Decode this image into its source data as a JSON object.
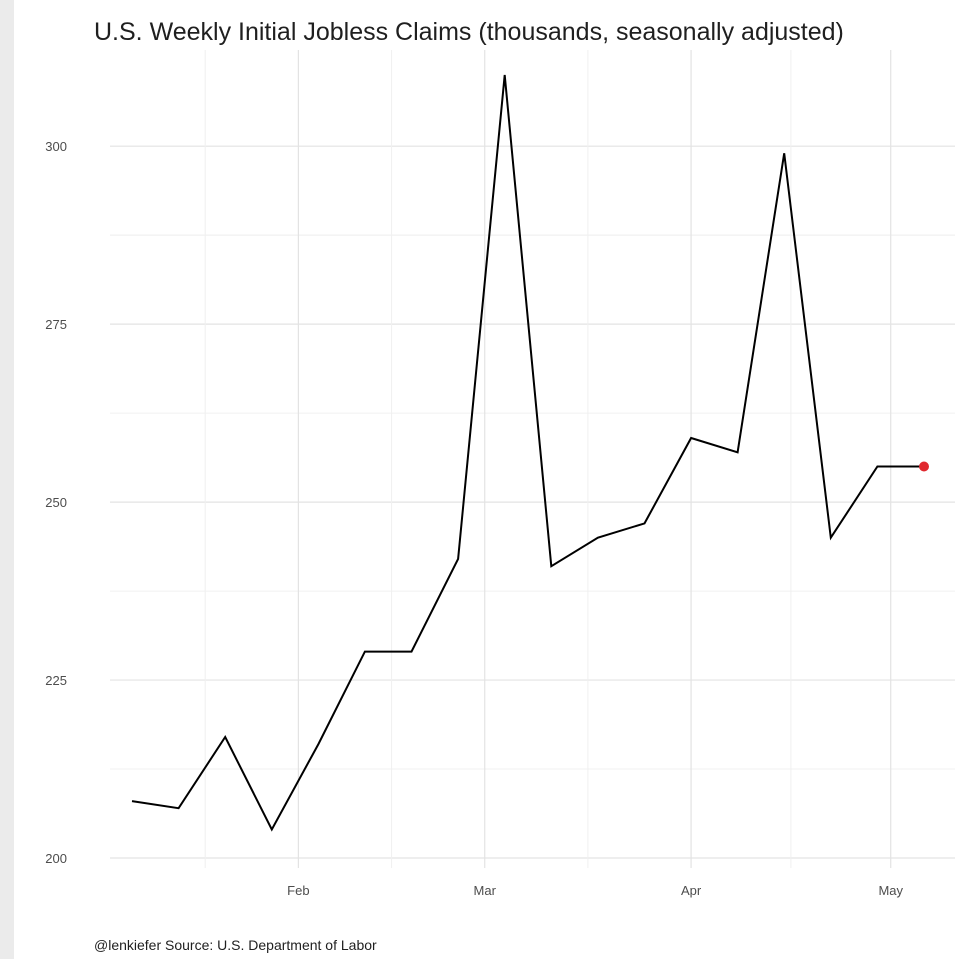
{
  "chart_data": {
    "type": "line",
    "title": "U.S. Weekly Initial Jobless Claims (thousands, seasonally adjusted)",
    "caption": "@lenkiefer Source: U.S. Department of Labor",
    "xlabel": "",
    "ylabel": "",
    "y_ticks": [
      200,
      225,
      250,
      275,
      300
    ],
    "x_ticks": [
      {
        "label": "Feb",
        "date": "2023-02-01"
      },
      {
        "label": "Mar",
        "date": "2023-03-01"
      },
      {
        "label": "Apr",
        "date": "2023-04-01"
      },
      {
        "label": "May",
        "date": "2023-05-01"
      }
    ],
    "ylim": [
      200,
      310
    ],
    "xlim": [
      "2023-01-07",
      "2023-05-06"
    ],
    "grid": true,
    "series": [
      {
        "x": [
          "2023-01-07",
          "2023-01-14",
          "2023-01-21",
          "2023-01-28",
          "2023-02-04",
          "2023-02-11",
          "2023-02-18",
          "2023-02-25",
          "2023-03-04",
          "2023-03-11",
          "2023-03-18",
          "2023-03-25",
          "2023-04-01",
          "2023-04-08",
          "2023-04-15",
          "2023-04-22",
          "2023-04-29",
          "2023-05-06"
        ],
        "values": [
          208,
          207,
          217,
          204,
          216,
          229,
          229,
          242,
          310,
          241,
          245,
          247,
          259,
          257,
          299,
          245,
          255,
          255
        ],
        "color": "#000000"
      }
    ],
    "highlight_last_point": {
      "color": "#e0282f"
    }
  }
}
